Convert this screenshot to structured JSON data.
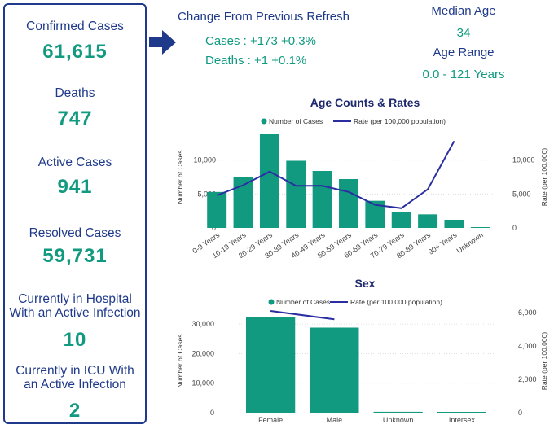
{
  "stats": {
    "confirmed": {
      "label": "Confirmed Cases",
      "value": "61,615"
    },
    "deaths": {
      "label": "Deaths",
      "value": "747"
    },
    "active": {
      "label": "Active Cases",
      "value": "941"
    },
    "resolved": {
      "label": "Resolved Cases",
      "value": "59,731"
    },
    "hospital": {
      "label_line1": "Currently in Hospital",
      "label_line2": "With an Active Infection",
      "value": "10"
    },
    "icu": {
      "label_line1": "Currently in ICU With",
      "label_line2": "an Active Infection",
      "value": "2"
    }
  },
  "change": {
    "title": "Change From Previous Refresh",
    "cases": "Cases : +173 +0.3%",
    "deaths": "Deaths : +1 +0.1%"
  },
  "median_age": {
    "label": "Median Age",
    "value": "34"
  },
  "age_range": {
    "label": "Age Range",
    "value": "0.0 - 121 Years"
  },
  "colors": {
    "teal": "#119a80",
    "navy": "#1f3a8a",
    "line": "#2a2ea0"
  },
  "chart_data": [
    {
      "type": "bar",
      "title": "Age Counts & Rates",
      "legend": [
        "Number of Cases",
        "Rate (per 100,000 population)"
      ],
      "legend_placement": "top",
      "categories": [
        "0-9 Years",
        "10-19 Years",
        "20-29 Years",
        "30-39 Years",
        "40-49 Years",
        "50-59 Years",
        "60-69 Years",
        "70-79 Years",
        "80-89 Years",
        "90+ Years",
        "Unknown"
      ],
      "series": [
        {
          "name": "Number of Cases",
          "type": "bar",
          "axis": "left",
          "values": [
            5300,
            7500,
            13900,
            9900,
            8400,
            7200,
            4000,
            2300,
            2000,
            1200,
            100
          ]
        },
        {
          "name": "Rate (per 100,000 population)",
          "type": "line",
          "axis": "right",
          "values": [
            4800,
            6300,
            8300,
            6200,
            6200,
            5300,
            3400,
            2900,
            5700,
            12800,
            null
          ]
        }
      ],
      "ylabel": "Number of Cases",
      "y2label": "Rate (per 100,000)",
      "ylim": [
        0,
        15000
      ],
      "y2lim": [
        0,
        15000
      ],
      "yticks": [
        0,
        5000,
        10000
      ],
      "yticklabels": [
        "0",
        "5,000",
        "10,000"
      ],
      "y2ticks": [
        0,
        5000,
        10000
      ],
      "y2ticklabels": [
        "0",
        "5,000",
        "10,000"
      ]
    },
    {
      "type": "bar",
      "title": "Sex",
      "legend": [
        "Number of Cases",
        "Rate (per 100,000 population)"
      ],
      "legend_placement": "top",
      "categories": [
        "Female",
        "Male",
        "Unknown",
        "Intersex"
      ],
      "series": [
        {
          "name": "Number of Cases",
          "type": "bar",
          "axis": "left",
          "values": [
            32500,
            28800,
            300,
            30
          ]
        },
        {
          "name": "Rate (per 100,000 population)",
          "type": "line",
          "axis": "right",
          "values": [
            6100,
            5600,
            null,
            null
          ]
        }
      ],
      "ylabel": "Number of Cases",
      "y2label": "Rate (per 100,000)",
      "ylim": [
        0,
        35000
      ],
      "y2lim": [
        0,
        6200
      ],
      "yticks": [
        0,
        10000,
        20000,
        30000
      ],
      "yticklabels": [
        "0",
        "10,000",
        "20,000",
        "30,000"
      ],
      "y2ticks": [
        0,
        2000,
        4000,
        6000
      ],
      "y2ticklabels": [
        "0",
        "2,000",
        "4,000",
        "6,000"
      ]
    }
  ]
}
